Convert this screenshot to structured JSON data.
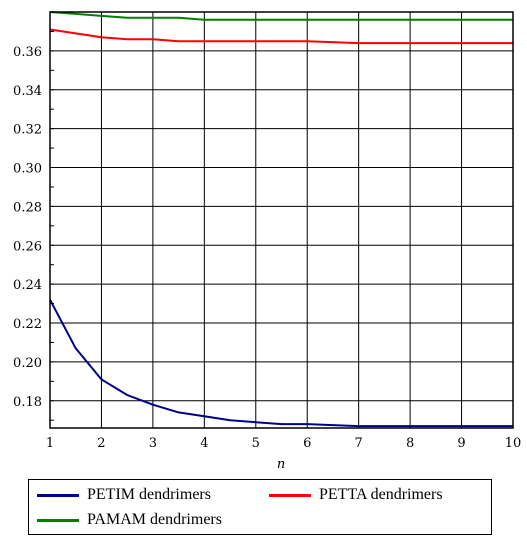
{
  "chart_data": {
    "type": "line",
    "xlabel": "n",
    "ylabel": "",
    "title": "",
    "xlim": [
      1,
      10
    ],
    "ylim": [
      0.166,
      0.38
    ],
    "x_ticks": [
      "1",
      "2",
      "3",
      "4",
      "5",
      "6",
      "7",
      "8",
      "9",
      "10"
    ],
    "y_ticks": [
      "0.18",
      "0.20",
      "0.22",
      "0.24",
      "0.26",
      "0.28",
      "0.30",
      "0.32",
      "0.34",
      "0.36"
    ],
    "grid": true,
    "legend_position": "bottom",
    "x": [
      1,
      1.5,
      2,
      2.5,
      3,
      3.5,
      4,
      4.5,
      5,
      5.5,
      6,
      7,
      8,
      9,
      10
    ],
    "series": [
      {
        "name": "PETIM dendrimers",
        "color": "#00008b",
        "values": [
          0.232,
          0.207,
          0.191,
          0.183,
          0.178,
          0.174,
          0.172,
          0.17,
          0.169,
          0.168,
          0.168,
          0.167,
          0.167,
          0.167,
          0.167
        ]
      },
      {
        "name": "PETTA dendrimers",
        "color": "#ff0000",
        "values": [
          0.371,
          0.369,
          0.367,
          0.366,
          0.366,
          0.365,
          0.365,
          0.365,
          0.365,
          0.365,
          0.365,
          0.364,
          0.364,
          0.364,
          0.364
        ]
      },
      {
        "name": "PAMAM dendrimers",
        "color": "#008000",
        "values": [
          0.38,
          0.379,
          0.378,
          0.377,
          0.377,
          0.377,
          0.376,
          0.376,
          0.376,
          0.376,
          0.376,
          0.376,
          0.376,
          0.376,
          0.376
        ]
      }
    ]
  }
}
